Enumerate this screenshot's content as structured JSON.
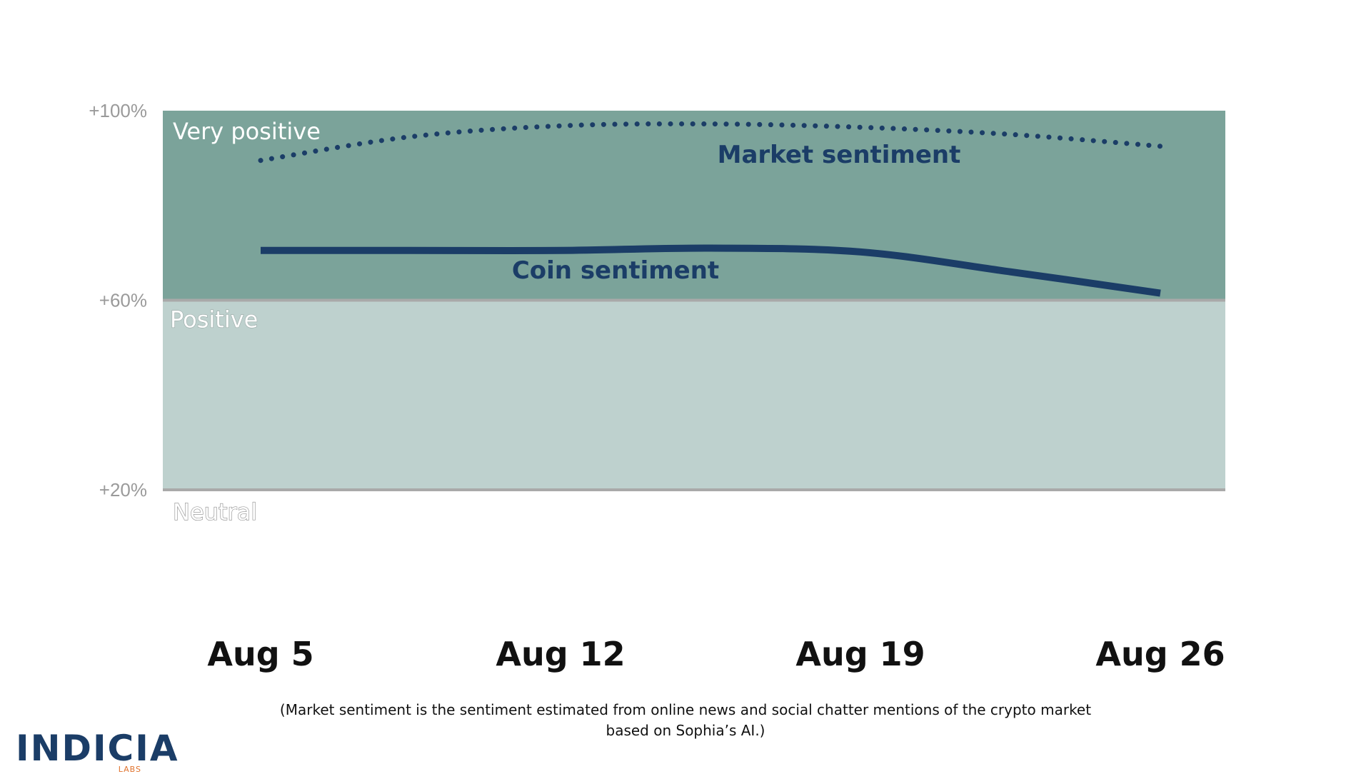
{
  "chart_data": {
    "type": "line",
    "x": [
      "Aug 5",
      "Aug 12",
      "Aug 19",
      "Aug 26"
    ],
    "ylim": [
      20,
      100
    ],
    "yticks": [
      "+100%",
      "+60%",
      "+20%"
    ],
    "bands": [
      {
        "label": "Very positive",
        "from": 60,
        "to": 100,
        "color": "#7ba39a"
      },
      {
        "label": "Positive",
        "from": 20,
        "to": 60,
        "color": "#bed1ce"
      },
      {
        "label": "Neutral",
        "from": 0,
        "to": 20,
        "color": "#ffffff"
      }
    ],
    "series": [
      {
        "name": "Market sentiment",
        "style": "dotted",
        "color": "#1b3d67",
        "x": [
          0,
          0.5,
          1,
          1.5,
          2,
          2.5,
          3
        ],
        "values": [
          89.5,
          94.5,
          96.8,
          97.2,
          96.5,
          95.0,
          92.5
        ]
      },
      {
        "name": "Coin sentiment",
        "style": "solid",
        "color": "#1b3d67",
        "x": [
          0,
          0.5,
          1,
          1.5,
          2,
          2.5,
          3
        ],
        "values": [
          70.5,
          70.5,
          70.5,
          71.0,
          70.2,
          66.0,
          61.5
        ]
      }
    ],
    "grid": false,
    "legend": "inline labels"
  },
  "note": {
    "line1": "(Market sentiment is the sentiment estimated from online news and social chatter mentions of the crypto market",
    "line2": "based on Sophia’s AI.)"
  },
  "logo": {
    "name": "INDICIA",
    "sub": "LABS"
  }
}
